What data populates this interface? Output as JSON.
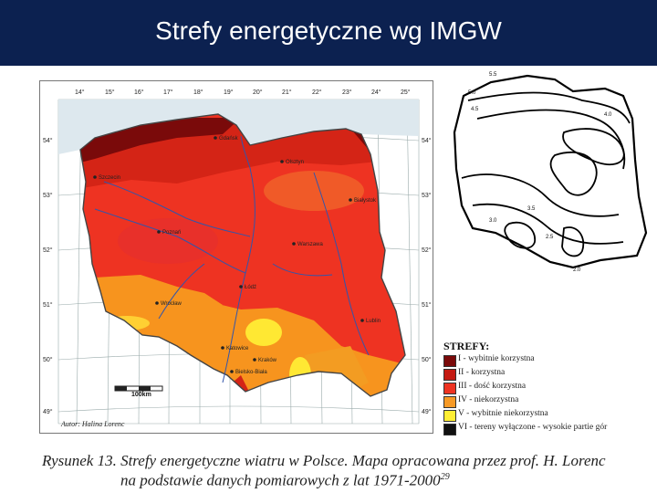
{
  "slide": {
    "title": "Strefy energetyczne wg IMGW",
    "header_color": "#0c2150"
  },
  "map": {
    "top_degrees": [
      "14°",
      "15°",
      "16°",
      "17°",
      "18°",
      "19°",
      "20°",
      "21°",
      "22°",
      "23°",
      "24°",
      "25°"
    ],
    "left_degrees": [
      "54°",
      "53°",
      "52°",
      "51°",
      "50°",
      "49°"
    ],
    "right_degrees": [
      "54°",
      "53°",
      "52°",
      "51°",
      "50°",
      "49°"
    ],
    "cities": [
      "Gdańsk",
      "Szczecin",
      "Olsztyn",
      "Poznań",
      "Warszawa",
      "Białystok",
      "Wrocław",
      "Łódź",
      "Kraków",
      "Katowice",
      "Lublin",
      "Bielsko-Biała"
    ],
    "scale_label": "100km",
    "author": "Autor: Halina Lorenc"
  },
  "iso_map": {
    "labels": [
      "5.5",
      "5.0",
      "4.5",
      "4.0",
      "3.5",
      "3.0",
      "2.5",
      "2.0"
    ]
  },
  "legend": {
    "title": "STREFY:",
    "items": [
      {
        "label": "I - wybitnie korzystna",
        "color": "#7a0a0a"
      },
      {
        "label": "II - korzystna",
        "color": "#c41a12"
      },
      {
        "label": "III - dość korzystna",
        "color": "#ee3322"
      },
      {
        "label": "IV - niekorzystna",
        "color": "#f79a26"
      },
      {
        "label": "V - wybitnie niekorzystna",
        "color": "#ffee33"
      },
      {
        "label": "VI - tereny wyłączone - wysokie partie gór",
        "color": "#111111"
      }
    ]
  },
  "caption": {
    "line1": "Rysunek 13. Strefy energetyczne wiatru w Polsce. Mapa opracowana przez prof. H. Lorenc",
    "line2": "na podstawie danych pomiarowych z lat 1971-2000",
    "ref": "29"
  }
}
